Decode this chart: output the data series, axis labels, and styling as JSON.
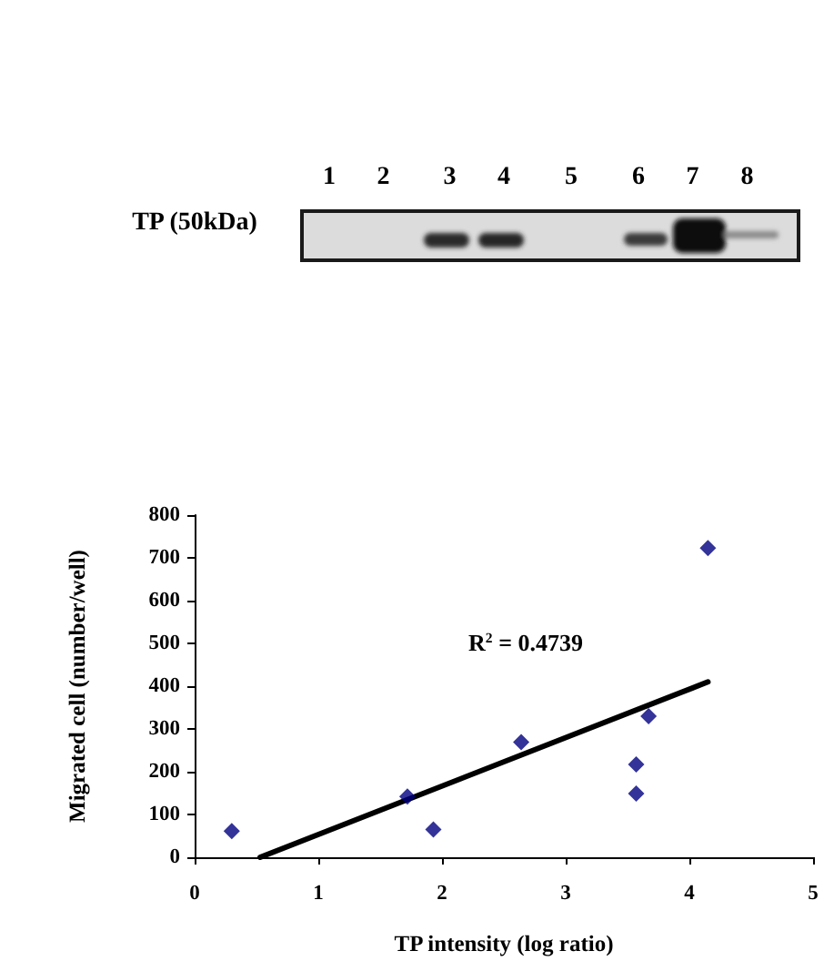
{
  "chart_data": {
    "type": "scatter",
    "xlabel": "TP intensity (log ratio)",
    "ylabel": "Migrated cell (number/well)",
    "annotations": [
      "TP (50kDa)",
      "1",
      "2",
      "3",
      "4",
      "5",
      "6",
      "7",
      "8",
      "R$^{2}$ = 0.4739"
    ],
    "series": [
      {
        "color": "#000080",
        "marker": "diamond",
        "x": [
          0.3,
          1.72,
          1.93,
          2.64,
          3.57,
          3.57,
          3.67,
          4.15
        ],
        "values": [
          61,
          142,
          65,
          269,
          217,
          149,
          330,
          723
        ]
      },
      {
        "type": "line",
        "color": "#000000",
        "marker": "none",
        "line_style": "solid",
        "x": [
          0.53,
          4.15
        ],
        "values": [
          0,
          410
        ]
      }
    ],
    "xlim": [
      0,
      5
    ],
    "xticks": [
      0,
      1,
      2,
      3,
      4,
      5
    ],
    "ylim": [
      0,
      800
    ],
    "yticks": [
      0,
      100,
      200,
      300,
      400,
      500,
      600,
      700,
      800
    ]
  }
}
